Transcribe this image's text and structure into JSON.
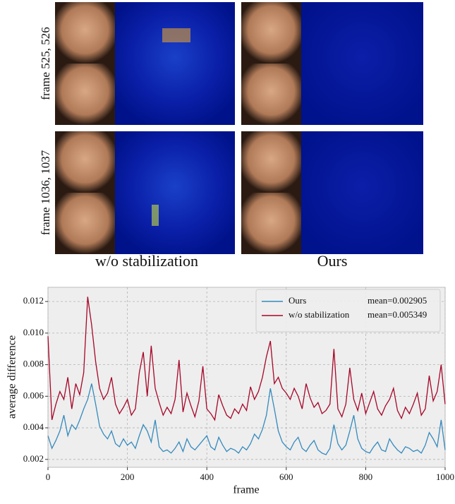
{
  "figure": {
    "row_labels": [
      "frame 525, 526",
      "frame 1036, 1037"
    ],
    "column_labels": [
      "w/o stabilization",
      "Ours"
    ]
  },
  "chart_data": {
    "type": "line",
    "x_label": "frame",
    "y_label": "average difference",
    "x": [
      0,
      10,
      20,
      30,
      40,
      50,
      60,
      70,
      80,
      90,
      100,
      110,
      120,
      130,
      140,
      150,
      160,
      170,
      180,
      190,
      200,
      210,
      220,
      230,
      240,
      250,
      260,
      270,
      280,
      290,
      300,
      310,
      320,
      330,
      340,
      350,
      360,
      370,
      380,
      390,
      400,
      410,
      420,
      430,
      440,
      450,
      460,
      470,
      480,
      490,
      500,
      510,
      520,
      530,
      540,
      550,
      560,
      570,
      580,
      590,
      600,
      610,
      620,
      630,
      640,
      650,
      660,
      670,
      680,
      690,
      700,
      710,
      720,
      730,
      740,
      750,
      760,
      770,
      780,
      790,
      800,
      810,
      820,
      830,
      840,
      850,
      860,
      870,
      880,
      890,
      900,
      910,
      920,
      930,
      940,
      950,
      960,
      970,
      980,
      990,
      1000
    ],
    "series": [
      {
        "name": "Ours",
        "color": "#348abd",
        "values": [
          0.0035,
          0.0027,
          0.0032,
          0.0038,
          0.0048,
          0.0035,
          0.0042,
          0.0039,
          0.0045,
          0.0052,
          0.0058,
          0.0068,
          0.0055,
          0.0041,
          0.0036,
          0.0033,
          0.0038,
          0.003,
          0.0028,
          0.0033,
          0.0029,
          0.0031,
          0.0027,
          0.0035,
          0.0042,
          0.0038,
          0.0031,
          0.0045,
          0.0028,
          0.0025,
          0.0026,
          0.0024,
          0.0027,
          0.0031,
          0.0025,
          0.0033,
          0.0028,
          0.0026,
          0.0029,
          0.0032,
          0.0035,
          0.0028,
          0.0026,
          0.0034,
          0.0029,
          0.0025,
          0.0027,
          0.0026,
          0.0024,
          0.0028,
          0.0026,
          0.003,
          0.0036,
          0.0033,
          0.0039,
          0.0048,
          0.0065,
          0.0052,
          0.0038,
          0.0031,
          0.0028,
          0.0026,
          0.0031,
          0.0034,
          0.0027,
          0.0025,
          0.0029,
          0.0032,
          0.0026,
          0.0024,
          0.0023,
          0.0027,
          0.0042,
          0.003,
          0.0026,
          0.0029,
          0.0038,
          0.0048,
          0.0033,
          0.0027,
          0.0025,
          0.0024,
          0.0028,
          0.0031,
          0.0026,
          0.0025,
          0.0033,
          0.0029,
          0.0026,
          0.0024,
          0.0028,
          0.0027,
          0.0025,
          0.0026,
          0.0024,
          0.0029,
          0.0037,
          0.0033,
          0.0028,
          0.0045,
          0.0026
        ]
      },
      {
        "name": "w/o stabilization",
        "color": "#a60628",
        "values": [
          0.0098,
          0.0045,
          0.0055,
          0.0063,
          0.0058,
          0.0072,
          0.0052,
          0.0068,
          0.0061,
          0.0075,
          0.0123,
          0.0105,
          0.0082,
          0.0065,
          0.0058,
          0.0062,
          0.0072,
          0.0055,
          0.0049,
          0.0053,
          0.0058,
          0.0048,
          0.0052,
          0.0075,
          0.0088,
          0.006,
          0.0092,
          0.0065,
          0.0056,
          0.0048,
          0.0053,
          0.0049,
          0.0058,
          0.0083,
          0.005,
          0.0062,
          0.0054,
          0.0047,
          0.0057,
          0.0079,
          0.0052,
          0.0049,
          0.0045,
          0.0061,
          0.0054,
          0.0048,
          0.0046,
          0.0052,
          0.0049,
          0.0055,
          0.0051,
          0.0066,
          0.0058,
          0.0063,
          0.0072,
          0.0085,
          0.0095,
          0.0068,
          0.0072,
          0.0065,
          0.0062,
          0.0058,
          0.0065,
          0.006,
          0.0052,
          0.0068,
          0.0059,
          0.0053,
          0.0056,
          0.0049,
          0.0051,
          0.0055,
          0.009,
          0.0052,
          0.0047,
          0.0055,
          0.0078,
          0.0058,
          0.0051,
          0.0062,
          0.0049,
          0.0056,
          0.0063,
          0.0052,
          0.0048,
          0.0054,
          0.0058,
          0.0065,
          0.0051,
          0.0046,
          0.0053,
          0.0049,
          0.0055,
          0.0062,
          0.0048,
          0.0052,
          0.0073,
          0.0057,
          0.0063,
          0.008,
          0.0055
        ]
      }
    ],
    "annotations": [
      "mean=0.002905",
      "mean=0.005349"
    ],
    "xlim": [
      0,
      1000
    ],
    "xticks": [
      0,
      200,
      400,
      600,
      800,
      1000
    ],
    "ylim": [
      0.0015,
      0.0129
    ],
    "yticks": [
      0.002,
      0.004,
      0.006,
      0.008,
      {
        "value": 0.01,
        "label": "0.010"
      },
      0.012
    ],
    "grid": true,
    "legend": "upper right"
  }
}
